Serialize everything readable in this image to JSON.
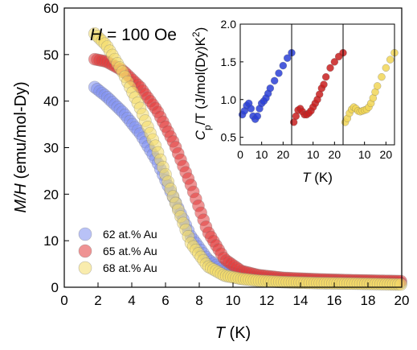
{
  "chart_data": [
    {
      "type": "scatter",
      "annotation": {
        "var": "H",
        "rest": " = 100 Oe"
      },
      "xlabel": {
        "var": "T",
        "rest": " (K)"
      },
      "ylabel": {
        "var": "M/H",
        "rest": " (emu/mol-Dy)"
      },
      "xlim": [
        0,
        20
      ],
      "ylim": [
        0,
        60
      ],
      "xticks": [
        "0",
        "2",
        "4",
        "6",
        "8",
        "10",
        "12",
        "14",
        "16",
        "18",
        "20"
      ],
      "yticks": [
        "0",
        "10",
        "20",
        "30",
        "40",
        "50",
        "60"
      ],
      "legend": {
        "placement": "lower-left"
      },
      "series": [
        {
          "name": "62 at.% Au",
          "color": "#7f8ff0",
          "x": [
            1.8,
            2.5,
            3.5,
            4.5,
            5.5,
            6.5,
            7.5,
            8.5,
            9.5,
            10.5,
            11.5,
            13,
            15,
            17,
            20
          ],
          "y": [
            43,
            41,
            37.5,
            33,
            27,
            19,
            11,
            6,
            3.5,
            2.5,
            2,
            1.6,
            1.3,
            1.1,
            0.9
          ]
        },
        {
          "name": "65 at.% Au",
          "color": "#e23a3a",
          "x": [
            1.8,
            2.5,
            3.5,
            4.5,
            5.5,
            6.5,
            7.5,
            8.5,
            9.5,
            10.5,
            11.5,
            13,
            15,
            17,
            20
          ],
          "y": [
            49,
            48.5,
            46.5,
            43,
            38,
            31,
            22,
            12,
            6,
            3.5,
            2.6,
            2,
            1.7,
            1.5,
            1.3
          ]
        },
        {
          "name": "68 at.% Au",
          "color": "#f4dc6a",
          "x": [
            1.8,
            2.5,
            3.5,
            4.5,
            5.5,
            6.5,
            7.5,
            8.5,
            9.5,
            10.5,
            11.5,
            13,
            15,
            17,
            20
          ],
          "y": [
            54.5,
            52,
            46,
            38.5,
            29.5,
            19,
            9.5,
            4.5,
            2.5,
            1.8,
            1.4,
            1.1,
            0.9,
            0.8,
            0.6
          ]
        }
      ]
    },
    {
      "type": "scatter",
      "layout": "inset, three panels",
      "ylabel": {
        "var": "C",
        "sub": "p",
        "rest": "/T (J/mol(Dy)K",
        "sup": "2",
        "end": ")"
      },
      "xlabel": {
        "var": "T",
        "rest": " (K)"
      },
      "ylim": [
        0.4,
        2.0
      ],
      "yticks": [
        "0.5",
        "1.0",
        "1.5",
        "2.0"
      ],
      "panels": [
        {
          "xlim": [
            0,
            24
          ],
          "xticks": [
            "0",
            "10",
            "20"
          ],
          "color": "#2a3fd6",
          "x": [
            1,
            2,
            3,
            4,
            5,
            6,
            7,
            8,
            9,
            10,
            11,
            12,
            13,
            14,
            16,
            18,
            20,
            22,
            24
          ],
          "y": [
            0.8,
            0.85,
            0.92,
            0.95,
            0.88,
            0.78,
            0.74,
            0.78,
            0.88,
            0.95,
            0.98,
            1.02,
            1.08,
            1.15,
            1.25,
            1.35,
            1.45,
            1.55,
            1.62
          ]
        },
        {
          "xlim": [
            0,
            24
          ],
          "xticks": [
            "10",
            "20"
          ],
          "color": "#c81e1e",
          "x": [
            1,
            2,
            3,
            4,
            5,
            6,
            7,
            8,
            9,
            10,
            11,
            12,
            13,
            14,
            15,
            16,
            18,
            20,
            22,
            24
          ],
          "y": [
            0.7,
            0.78,
            0.86,
            0.88,
            0.84,
            0.8,
            0.8,
            0.82,
            0.85,
            0.9,
            0.95,
            1.0,
            1.07,
            1.15,
            1.2,
            1.3,
            1.42,
            1.5,
            1.57,
            1.62
          ]
        },
        {
          "xlim": [
            0,
            24
          ],
          "xticks": [
            "10",
            "20"
          ],
          "color": "#f1d657",
          "x": [
            1,
            2,
            3,
            4,
            5,
            6,
            7,
            8,
            9,
            10,
            11,
            12,
            13,
            14,
            15,
            16,
            18,
            20,
            22,
            24
          ],
          "y": [
            0.7,
            0.75,
            0.82,
            0.87,
            0.9,
            0.88,
            0.85,
            0.84,
            0.85,
            0.86,
            0.87,
            0.9,
            0.95,
            1.02,
            1.1,
            1.18,
            1.3,
            1.42,
            1.53,
            1.62
          ]
        }
      ]
    }
  ]
}
